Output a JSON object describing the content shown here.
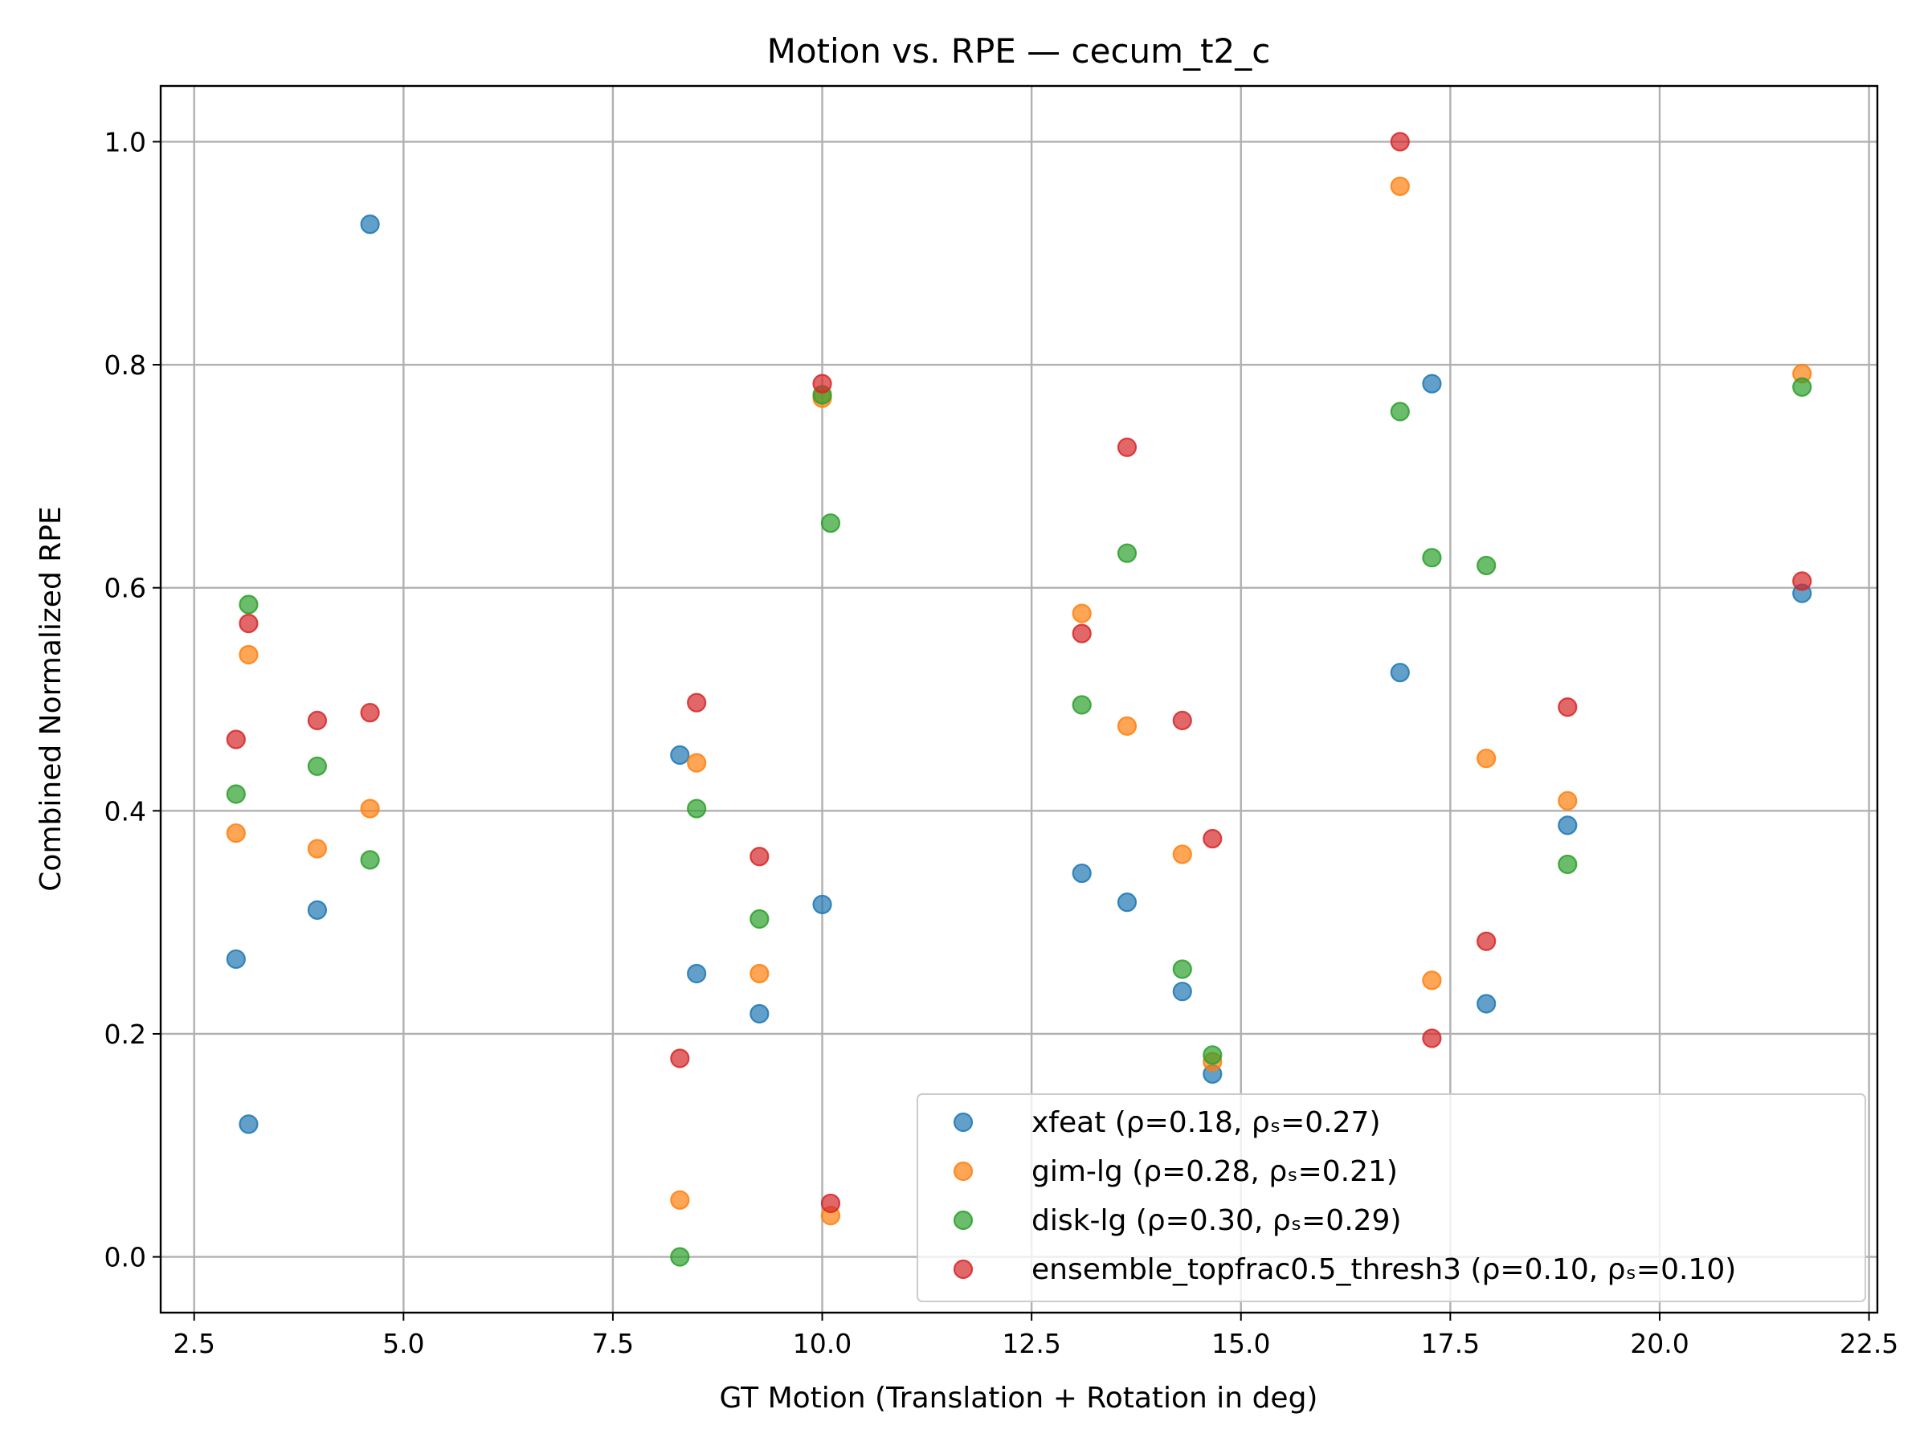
{
  "chart_data": {
    "type": "scatter",
    "title": "Motion vs. RPE — cecum_t2_c",
    "xlabel": "GT Motion (Translation + Rotation in deg)",
    "ylabel": "Combined Normalized RPE",
    "xlim": [
      2.1,
      22.6
    ],
    "ylim": [
      -0.05,
      1.05
    ],
    "x_ticks": [
      "2.5",
      "5.0",
      "7.5",
      "10.0",
      "12.5",
      "15.0",
      "17.5",
      "20.0",
      "22.5"
    ],
    "x_tick_values": [
      2.5,
      5.0,
      7.5,
      10.0,
      12.5,
      15.0,
      17.5,
      20.0,
      22.5
    ],
    "y_ticks": [
      "0.0",
      "0.2",
      "0.4",
      "0.6",
      "0.8",
      "1.0"
    ],
    "y_tick_values": [
      0.0,
      0.2,
      0.4,
      0.6,
      0.8,
      1.0
    ],
    "grid": true,
    "legend_position": "lower-right",
    "series": [
      {
        "name": "xfeat (ρ=0.18, ρₛ=0.27)",
        "color": "#1f77b4",
        "points": [
          [
            3.0,
            0.267
          ],
          [
            3.15,
            0.119
          ],
          [
            3.97,
            0.311
          ],
          [
            4.6,
            0.926
          ],
          [
            8.3,
            0.45
          ],
          [
            8.5,
            0.254
          ],
          [
            9.25,
            0.218
          ],
          [
            10.0,
            0.316
          ],
          [
            13.1,
            0.344
          ],
          [
            13.64,
            0.318
          ],
          [
            14.3,
            0.238
          ],
          [
            14.66,
            0.164
          ],
          [
            16.9,
            0.524
          ],
          [
            17.28,
            0.783
          ],
          [
            17.93,
            0.227
          ],
          [
            18.9,
            0.387
          ],
          [
            21.7,
            0.595
          ]
        ]
      },
      {
        "name": "gim-lg (ρ=0.28, ρₛ=0.21)",
        "color": "#ff7f0e",
        "points": [
          [
            3.0,
            0.38
          ],
          [
            3.15,
            0.54
          ],
          [
            3.97,
            0.366
          ],
          [
            4.6,
            0.402
          ],
          [
            8.3,
            0.051
          ],
          [
            8.5,
            0.443
          ],
          [
            9.25,
            0.254
          ],
          [
            10.0,
            0.77
          ],
          [
            10.1,
            0.037
          ],
          [
            13.1,
            0.577
          ],
          [
            13.64,
            0.476
          ],
          [
            14.3,
            0.361
          ],
          [
            14.66,
            0.175
          ],
          [
            16.9,
            0.96
          ],
          [
            17.28,
            0.248
          ],
          [
            17.93,
            0.447
          ],
          [
            18.9,
            0.409
          ],
          [
            21.7,
            0.792
          ]
        ]
      },
      {
        "name": "disk-lg (ρ=0.30, ρₛ=0.29)",
        "color": "#2ca02c",
        "points": [
          [
            3.0,
            0.415
          ],
          [
            3.15,
            0.585
          ],
          [
            3.97,
            0.44
          ],
          [
            4.6,
            0.356
          ],
          [
            8.3,
            0.0
          ],
          [
            8.5,
            0.402
          ],
          [
            9.25,
            0.303
          ],
          [
            10.0,
            0.773
          ],
          [
            10.1,
            0.658
          ],
          [
            13.1,
            0.495
          ],
          [
            13.64,
            0.631
          ],
          [
            14.3,
            0.258
          ],
          [
            14.66,
            0.181
          ],
          [
            16.9,
            0.758
          ],
          [
            17.28,
            0.627
          ],
          [
            17.93,
            0.62
          ],
          [
            18.9,
            0.352
          ],
          [
            21.7,
            0.78
          ]
        ]
      },
      {
        "name": "ensemble_topfrac0.5_thresh3 (ρ=0.10, ρₛ=0.10)",
        "color": "#d62728",
        "points": [
          [
            3.0,
            0.464
          ],
          [
            3.15,
            0.568
          ],
          [
            3.97,
            0.481
          ],
          [
            4.6,
            0.488
          ],
          [
            8.3,
            0.178
          ],
          [
            8.5,
            0.497
          ],
          [
            9.25,
            0.359
          ],
          [
            10.0,
            0.783
          ],
          [
            10.1,
            0.048
          ],
          [
            13.1,
            0.559
          ],
          [
            13.64,
            0.726
          ],
          [
            14.3,
            0.481
          ],
          [
            14.66,
            0.375
          ],
          [
            16.9,
            1.0
          ],
          [
            17.28,
            0.196
          ],
          [
            17.93,
            0.283
          ],
          [
            18.9,
            0.493
          ],
          [
            21.7,
            0.606
          ]
        ]
      }
    ]
  }
}
